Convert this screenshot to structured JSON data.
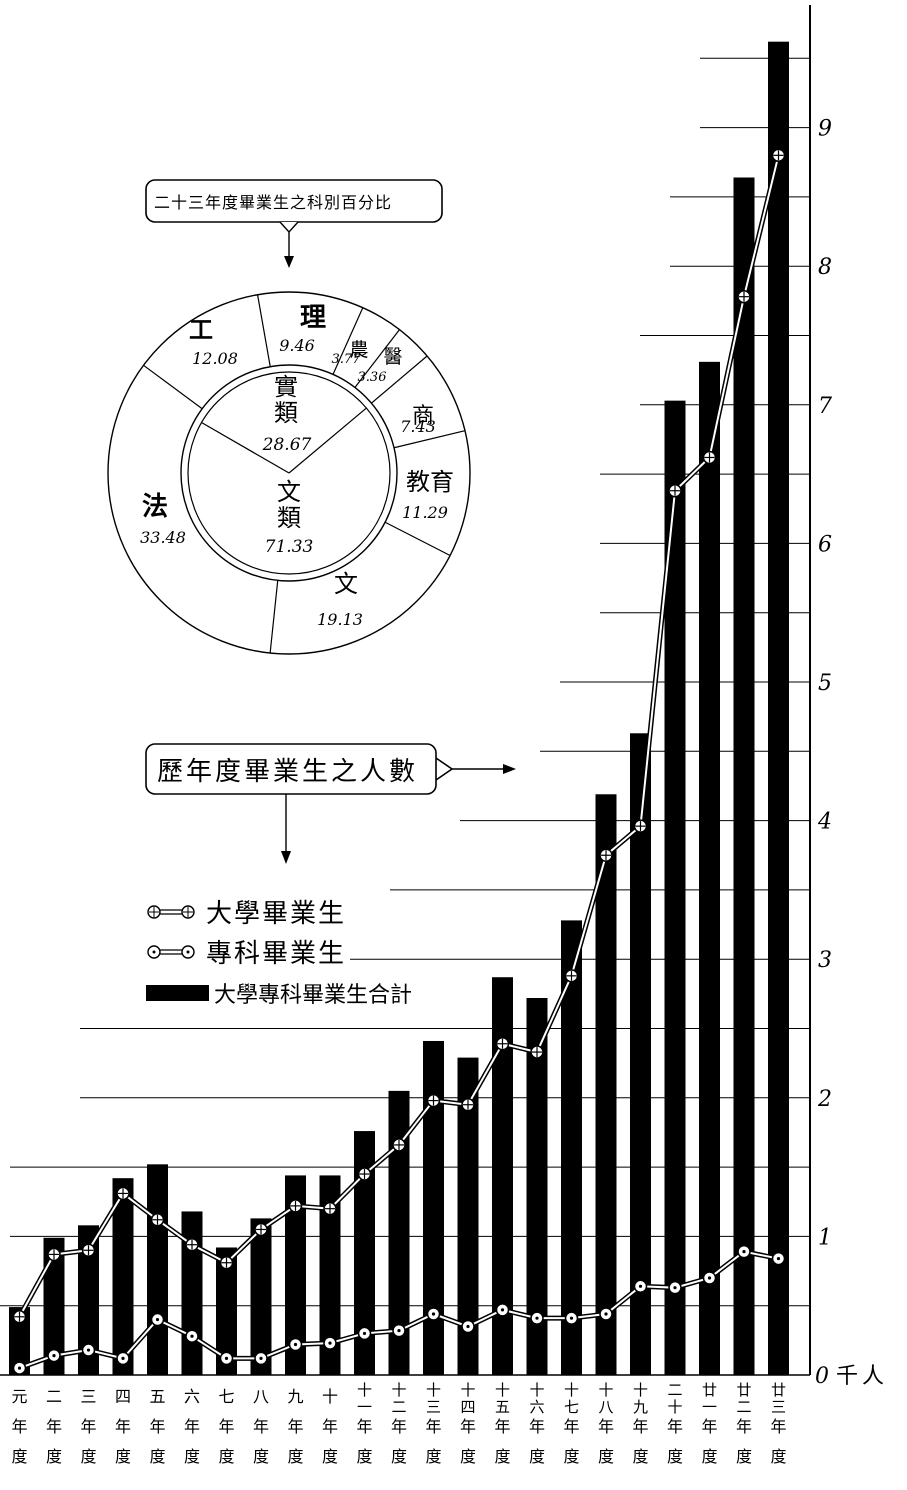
{
  "chart_data": [
    {
      "type": "bar",
      "categories": [
        [
          "元",
          "年",
          "度"
        ],
        [
          "二",
          "年",
          "度"
        ],
        [
          "三",
          "年",
          "度"
        ],
        [
          "四",
          "年",
          "度"
        ],
        [
          "五",
          "年",
          "度"
        ],
        [
          "六",
          "年",
          "度"
        ],
        [
          "七",
          "年",
          "度"
        ],
        [
          "八",
          "年",
          "度"
        ],
        [
          "九",
          "年",
          "度"
        ],
        [
          "十",
          "年",
          "度"
        ],
        [
          "十一",
          "年",
          "度"
        ],
        [
          "十二",
          "年",
          "度"
        ],
        [
          "十三",
          "年",
          "度"
        ],
        [
          "十四",
          "年",
          "度"
        ],
        [
          "十五",
          "年",
          "度"
        ],
        [
          "十六",
          "年",
          "度"
        ],
        [
          "十七",
          "年",
          "度"
        ],
        [
          "十八",
          "年",
          "度"
        ],
        [
          "十九",
          "年",
          "度"
        ],
        [
          "二十",
          "年",
          "度"
        ],
        [
          "廿一",
          "年",
          "度"
        ],
        [
          "廿二",
          "年",
          "度"
        ],
        [
          "廿三",
          "年",
          "度"
        ]
      ],
      "series": [
        {
          "name": "大學專科畢業生合計",
          "type": "bar",
          "values": [
            0.49,
            0.99,
            1.08,
            1.42,
            1.52,
            1.18,
            0.92,
            1.13,
            1.44,
            1.44,
            1.76,
            2.05,
            2.41,
            2.29,
            2.87,
            2.72,
            3.28,
            4.19,
            4.63,
            7.03,
            7.31,
            8.64,
            9.62
          ]
        },
        {
          "name": "大學畢業生",
          "type": "line",
          "marker": "circle-plus",
          "values": [
            0.42,
            0.87,
            0.9,
            1.31,
            1.12,
            0.94,
            0.81,
            1.05,
            1.22,
            1.2,
            1.45,
            1.66,
            1.98,
            1.95,
            2.39,
            2.33,
            2.88,
            3.75,
            3.96,
            6.38,
            6.62,
            7.78,
            8.8
          ]
        },
        {
          "name": "專科畢業生",
          "type": "line",
          "marker": "circle-dot",
          "values": [
            0.05,
            0.14,
            0.18,
            0.12,
            0.4,
            0.28,
            0.12,
            0.12,
            0.22,
            0.23,
            0.3,
            0.32,
            0.44,
            0.35,
            0.47,
            0.41,
            0.41,
            0.44,
            0.64,
            0.63,
            0.7,
            0.89,
            0.84
          ]
        }
      ],
      "y_ticks": [
        "1",
        "2",
        "3",
        "4",
        "5",
        "6",
        "7",
        "8",
        "9"
      ],
      "y_zero_label": "0",
      "y_unit": "千人",
      "ylim": [
        0,
        9.8
      ],
      "title": "歷年度畢業生之人數",
      "colors": {
        "bar": "#000000",
        "line": "#000000"
      }
    },
    {
      "type": "pie",
      "title": "二十三年度畢業生之科別百分比",
      "outer": [
        {
          "label": "理",
          "value": 9.46
        },
        {
          "label": "農",
          "value": 3.77
        },
        {
          "label": "醫",
          "value": 3.36
        },
        {
          "label": "商",
          "value": 7.43
        },
        {
          "label": "教育",
          "value": 11.29
        },
        {
          "label": "文",
          "value": 19.13
        },
        {
          "label": "法",
          "value": 33.48
        },
        {
          "label": "工",
          "value": 12.08
        }
      ],
      "inner": [
        {
          "label": "實類",
          "value": 28.67
        },
        {
          "label": "文類",
          "value": 71.33
        }
      ]
    }
  ],
  "display": {
    "pie_title_text": "二十三年度畢業生之科別百分比",
    "bar_title_text": "歷年度畢業生之人數",
    "legend": [
      "大學畢業生",
      "專科畢業生",
      "大學專科畢業生合計"
    ],
    "outer_texts": [
      "理",
      "9.46",
      "農",
      "3.77",
      "醫",
      "3.36",
      "商",
      "7.43",
      "教育",
      "11.29",
      "文",
      "19.13",
      "法",
      "33.48",
      "工",
      "12.08"
    ],
    "inner_texts": [
      "實類",
      "28.67",
      "文類",
      "71.33"
    ]
  }
}
